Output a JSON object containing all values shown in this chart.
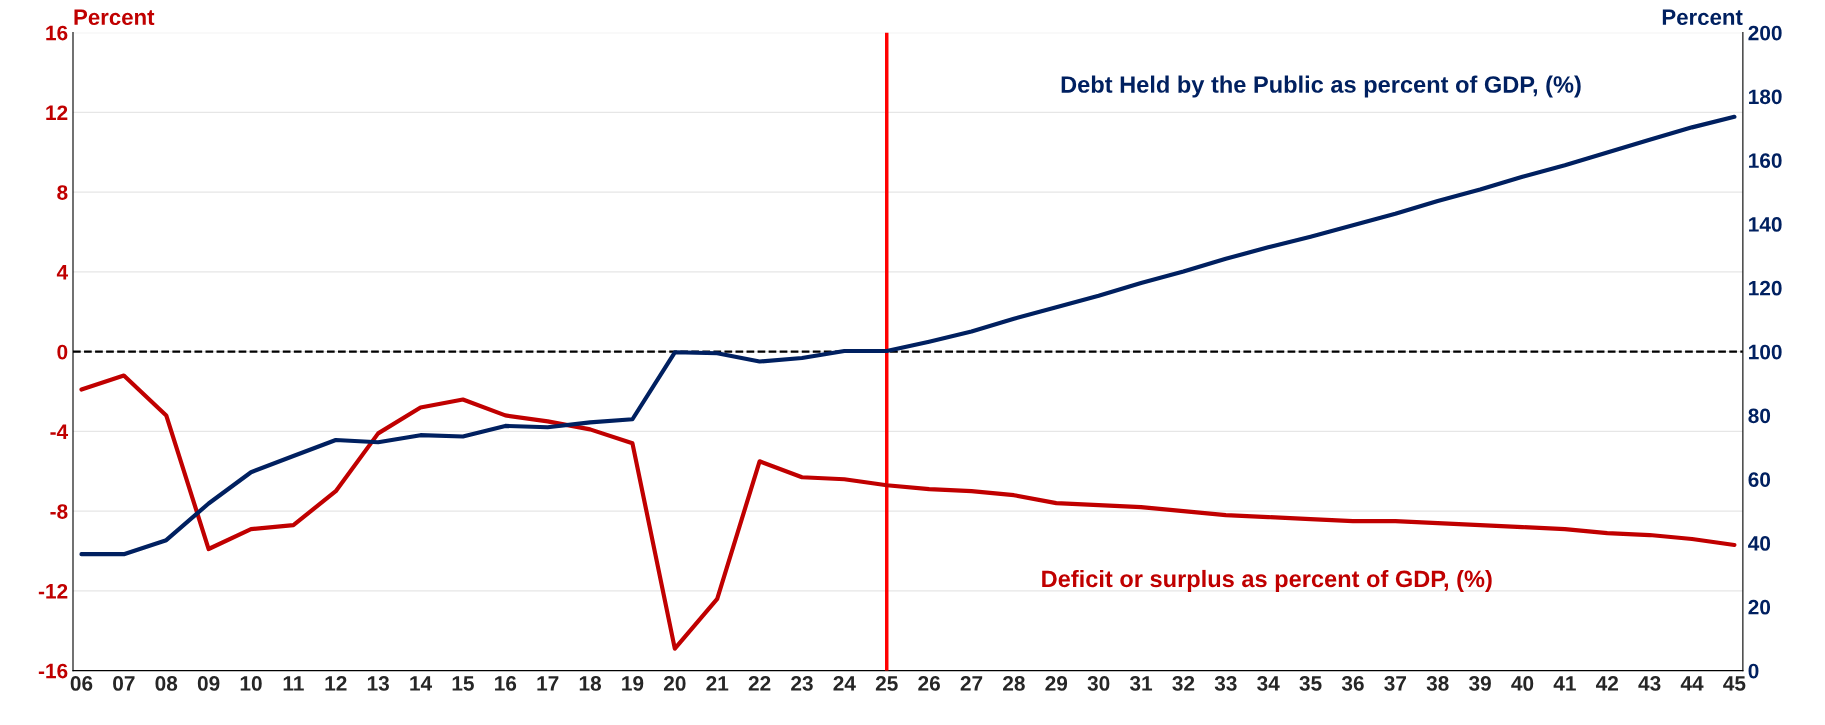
{
  "chart_data": {
    "type": "line",
    "ylabel": "Percent",
    "y2label": "Percent",
    "categories": [
      "06",
      "07",
      "08",
      "09",
      "10",
      "11",
      "12",
      "13",
      "14",
      "15",
      "16",
      "17",
      "18",
      "19",
      "20",
      "21",
      "22",
      "23",
      "24",
      "25",
      "26",
      "27",
      "28",
      "29",
      "30",
      "31",
      "32",
      "33",
      "34",
      "35",
      "36",
      "37",
      "38",
      "39",
      "40",
      "41",
      "42",
      "43",
      "44",
      "45"
    ],
    "series": [
      {
        "name": "Deficit or surplus as percent of GDP, (%)",
        "color": "#c00000",
        "values": [
          -1.9,
          -1.2,
          -3.2,
          -9.9,
          -8.9,
          -8.7,
          -7.0,
          -4.1,
          -2.8,
          -2.4,
          -3.2,
          -3.5,
          -3.9,
          -4.6,
          -14.9,
          -12.4,
          -5.5,
          -6.3,
          -6.4,
          -6.7,
          -6.9,
          -7.0,
          -7.2,
          -7.6,
          -7.7,
          -7.8,
          -8.0,
          -8.2,
          -8.3,
          -8.4,
          -8.5,
          -8.5,
          -8.6,
          -8.7,
          -8.8,
          -8.9,
          -9.1,
          -9.2,
          -9.4,
          -9.7
        ]
      },
      {
        "name": "Debt Held by the Public as percent of GDP, (%)",
        "color": "#002060",
        "axis": "y2",
        "values": [
          36.5,
          36.5,
          40.9,
          52.4,
          62.2,
          67.3,
          72.3,
          71.6,
          73.8,
          73.4,
          76.7,
          76.3,
          77.8,
          78.8,
          99.8,
          99.5,
          96.9,
          98.0,
          100.2,
          100.2,
          103.1,
          106.3,
          110.3,
          113.9,
          117.5,
          121.5,
          125.1,
          129.1,
          132.7,
          136.0,
          139.6,
          143.2,
          147.2,
          150.8,
          154.8,
          158.4,
          162.4,
          166.4,
          170.3,
          173.6
        ]
      }
    ],
    "ylim": [
      -16,
      16
    ],
    "yticks": [
      -16,
      -12,
      -8,
      -4,
      0,
      4,
      8,
      12,
      16
    ],
    "y2lim": [
      0,
      200
    ],
    "y2ticks": [
      0,
      20,
      40,
      60,
      80,
      100,
      120,
      140,
      160,
      180,
      200
    ],
    "ref_lines": [
      {
        "axis": "y",
        "value": 0,
        "color": "#000000",
        "line_style": "dashed"
      },
      {
        "axis": "x",
        "value": "25",
        "color": "#ff0000",
        "line_style": "solid"
      }
    ],
    "grid": "y",
    "legend": false,
    "line_style": "solid",
    "marker": "none"
  }
}
